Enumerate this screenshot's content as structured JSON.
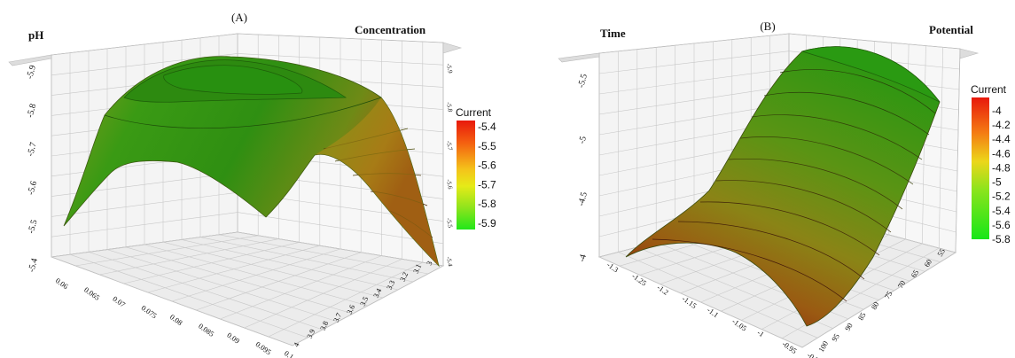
{
  "chart_data": [
    {
      "type": "surface",
      "title": "(A)",
      "axis_labels": {
        "z": "pH",
        "y": "Concentration"
      },
      "x_ticks": [
        "0.06",
        "0.065",
        "0.07",
        "0.075",
        "0.08",
        "0.085",
        "0.09",
        "0.095",
        "0.1"
      ],
      "y_ticks": [
        "3",
        "3.1",
        "3.2",
        "3.3",
        "3.4",
        "3.5",
        "3.6",
        "3.7",
        "3.8",
        "3.9",
        "4"
      ],
      "z_ticks": [
        "-5.4",
        "-5.5",
        "-5.6",
        "-5.7",
        "-5.8",
        "-5.9"
      ],
      "xlim": [
        0.06,
        0.1
      ],
      "ylim": [
        3,
        4
      ],
      "zlim": [
        -5.4,
        -5.9
      ],
      "surface": {
        "x": [
          0.06,
          0.07,
          0.08,
          0.09,
          0.1
        ],
        "y": [
          3.0,
          3.25,
          3.5,
          3.75,
          4.0
        ],
        "z": [
          [
            -5.7,
            -5.76,
            -5.78,
            -5.76,
            -5.7
          ],
          [
            -5.74,
            -5.83,
            -5.86,
            -5.83,
            -5.74
          ],
          [
            -5.75,
            -5.86,
            -5.9,
            -5.86,
            -5.75
          ],
          [
            -5.7,
            -5.8,
            -5.84,
            -5.8,
            -5.7
          ],
          [
            -5.42,
            -5.55,
            -5.62,
            -5.55,
            -5.46
          ]
        ]
      },
      "colorbar": {
        "title": "Current",
        "ticks": [
          "-5.4",
          "-5.5",
          "-5.6",
          "-5.7",
          "-5.8",
          "-5.9"
        ],
        "colors": [
          "#e8190c",
          "#f45e10",
          "#f4b41a",
          "#e6ea18",
          "#8fe41c",
          "#22e61a"
        ]
      }
    },
    {
      "type": "surface",
      "title": "(B)",
      "axis_labels": {
        "x": "Time",
        "y": "Potential"
      },
      "x_ticks": [
        "-1.3",
        "-1.25",
        "-1.2",
        "-1.15",
        "-1.1",
        "-1.05",
        "-1",
        "-0.95",
        "-0.9"
      ],
      "y_ticks": [
        "100",
        "95",
        "90",
        "85",
        "80",
        "75",
        "70",
        "65",
        "60",
        "55"
      ],
      "z_ticks": [
        "-4",
        "-4.5",
        "-5",
        "-5.5"
      ],
      "xlim": [
        -1.3,
        -0.9
      ],
      "ylim": [
        100,
        55
      ],
      "zlim": [
        -4,
        -5.8
      ],
      "surface": {
        "x": [
          -1.3,
          -1.2,
          -1.1,
          -1.0,
          -0.9
        ],
        "y": [
          100,
          88.75,
          77.5,
          66.25,
          55
        ],
        "z": [
          [
            -4.05,
            -4.15,
            -4.2,
            -4.15,
            -3.95
          ],
          [
            -4.55,
            -4.75,
            -4.85,
            -4.75,
            -4.55
          ],
          [
            -4.95,
            -5.15,
            -5.25,
            -5.15,
            -4.95
          ],
          [
            -5.25,
            -5.45,
            -5.55,
            -5.45,
            -5.25
          ],
          [
            -5.45,
            -5.65,
            -5.75,
            -5.65,
            -5.45
          ]
        ]
      },
      "colorbar": {
        "title": "Current",
        "ticks": [
          "-4",
          "-4.2",
          "-4.4",
          "-4.6",
          "-4.8",
          "-5",
          "-5.2",
          "-5.4",
          "-5.6",
          "-5.8"
        ],
        "colors": [
          "#e8190c",
          "#f04a10",
          "#f47c14",
          "#f4ac18",
          "#ecd61a",
          "#c8e61a",
          "#8ce41c",
          "#5ee41c",
          "#36e41a",
          "#16e618"
        ]
      }
    }
  ]
}
